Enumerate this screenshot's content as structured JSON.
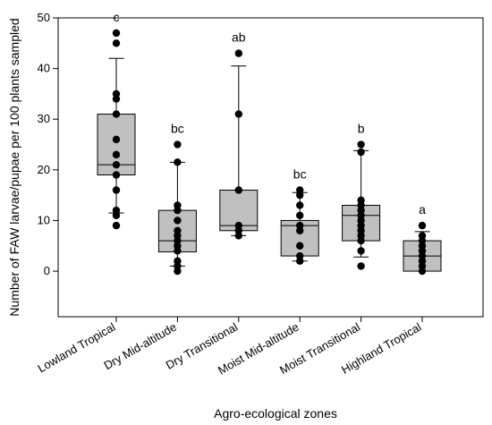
{
  "chart_data": {
    "type": "boxplot",
    "xlabel": "Agro-ecological zones",
    "ylabel": "Number of FAW larvae/pupae per 100 plants sampled",
    "ylim": [
      -9,
      50
    ],
    "yticks": [
      0,
      10,
      20,
      30,
      40,
      50
    ],
    "grid": false,
    "colors": {
      "box": "#c0c0c0",
      "stroke": "#000000",
      "point": "#000000"
    },
    "categories": [
      "Lowland Tropical",
      "Dry Mid-altitude",
      "Dry Transitional",
      "Moist Mid-altitude",
      "Moist Transitional",
      "Highland Tropical"
    ],
    "series": [
      {
        "category": "Lowland Tropical",
        "letter": "c",
        "whisker_low": 11.5,
        "q1": 19,
        "median": 21,
        "q3": 31,
        "whisker_high": 42,
        "points": [
          47,
          45,
          35,
          34,
          31,
          26,
          23,
          21,
          19,
          16,
          12,
          11,
          9
        ]
      },
      {
        "category": "Dry Mid-altitude",
        "letter": "bc",
        "whisker_low": 1,
        "q1": 3.8,
        "median": 6,
        "q3": 12,
        "whisker_high": 21.5,
        "points": [
          25,
          21.5,
          13,
          12,
          10,
          8,
          7,
          6,
          5,
          4,
          2,
          1,
          0
        ]
      },
      {
        "category": "Dry Transitional",
        "letter": "ab",
        "whisker_low": 7,
        "q1": 8,
        "median": 9,
        "q3": 16,
        "whisker_high": 40.5,
        "points": [
          43,
          31,
          16,
          9,
          8,
          7
        ]
      },
      {
        "category": "Moist Mid-altitude",
        "letter": "bc",
        "whisker_low": 2,
        "q1": 3,
        "median": 9,
        "q3": 10,
        "whisker_high": 15.5,
        "points": [
          16,
          15,
          13,
          11,
          9,
          8,
          5,
          3,
          2
        ]
      },
      {
        "category": "Moist Transitional",
        "letter": "b",
        "whisker_low": 2.8,
        "q1": 6,
        "median": 11,
        "q3": 13,
        "whisker_high": 23.8,
        "points": [
          25,
          23.5,
          14,
          13,
          12,
          11,
          10,
          9,
          8,
          7,
          6,
          4,
          1
        ]
      },
      {
        "category": "Highland Tropical",
        "letter": "a",
        "whisker_low": 0,
        "q1": 0,
        "median": 3,
        "q3": 6,
        "whisker_high": 7.8,
        "points": [
          9,
          7,
          6,
          5,
          4,
          3,
          2,
          1,
          0
        ]
      }
    ]
  }
}
